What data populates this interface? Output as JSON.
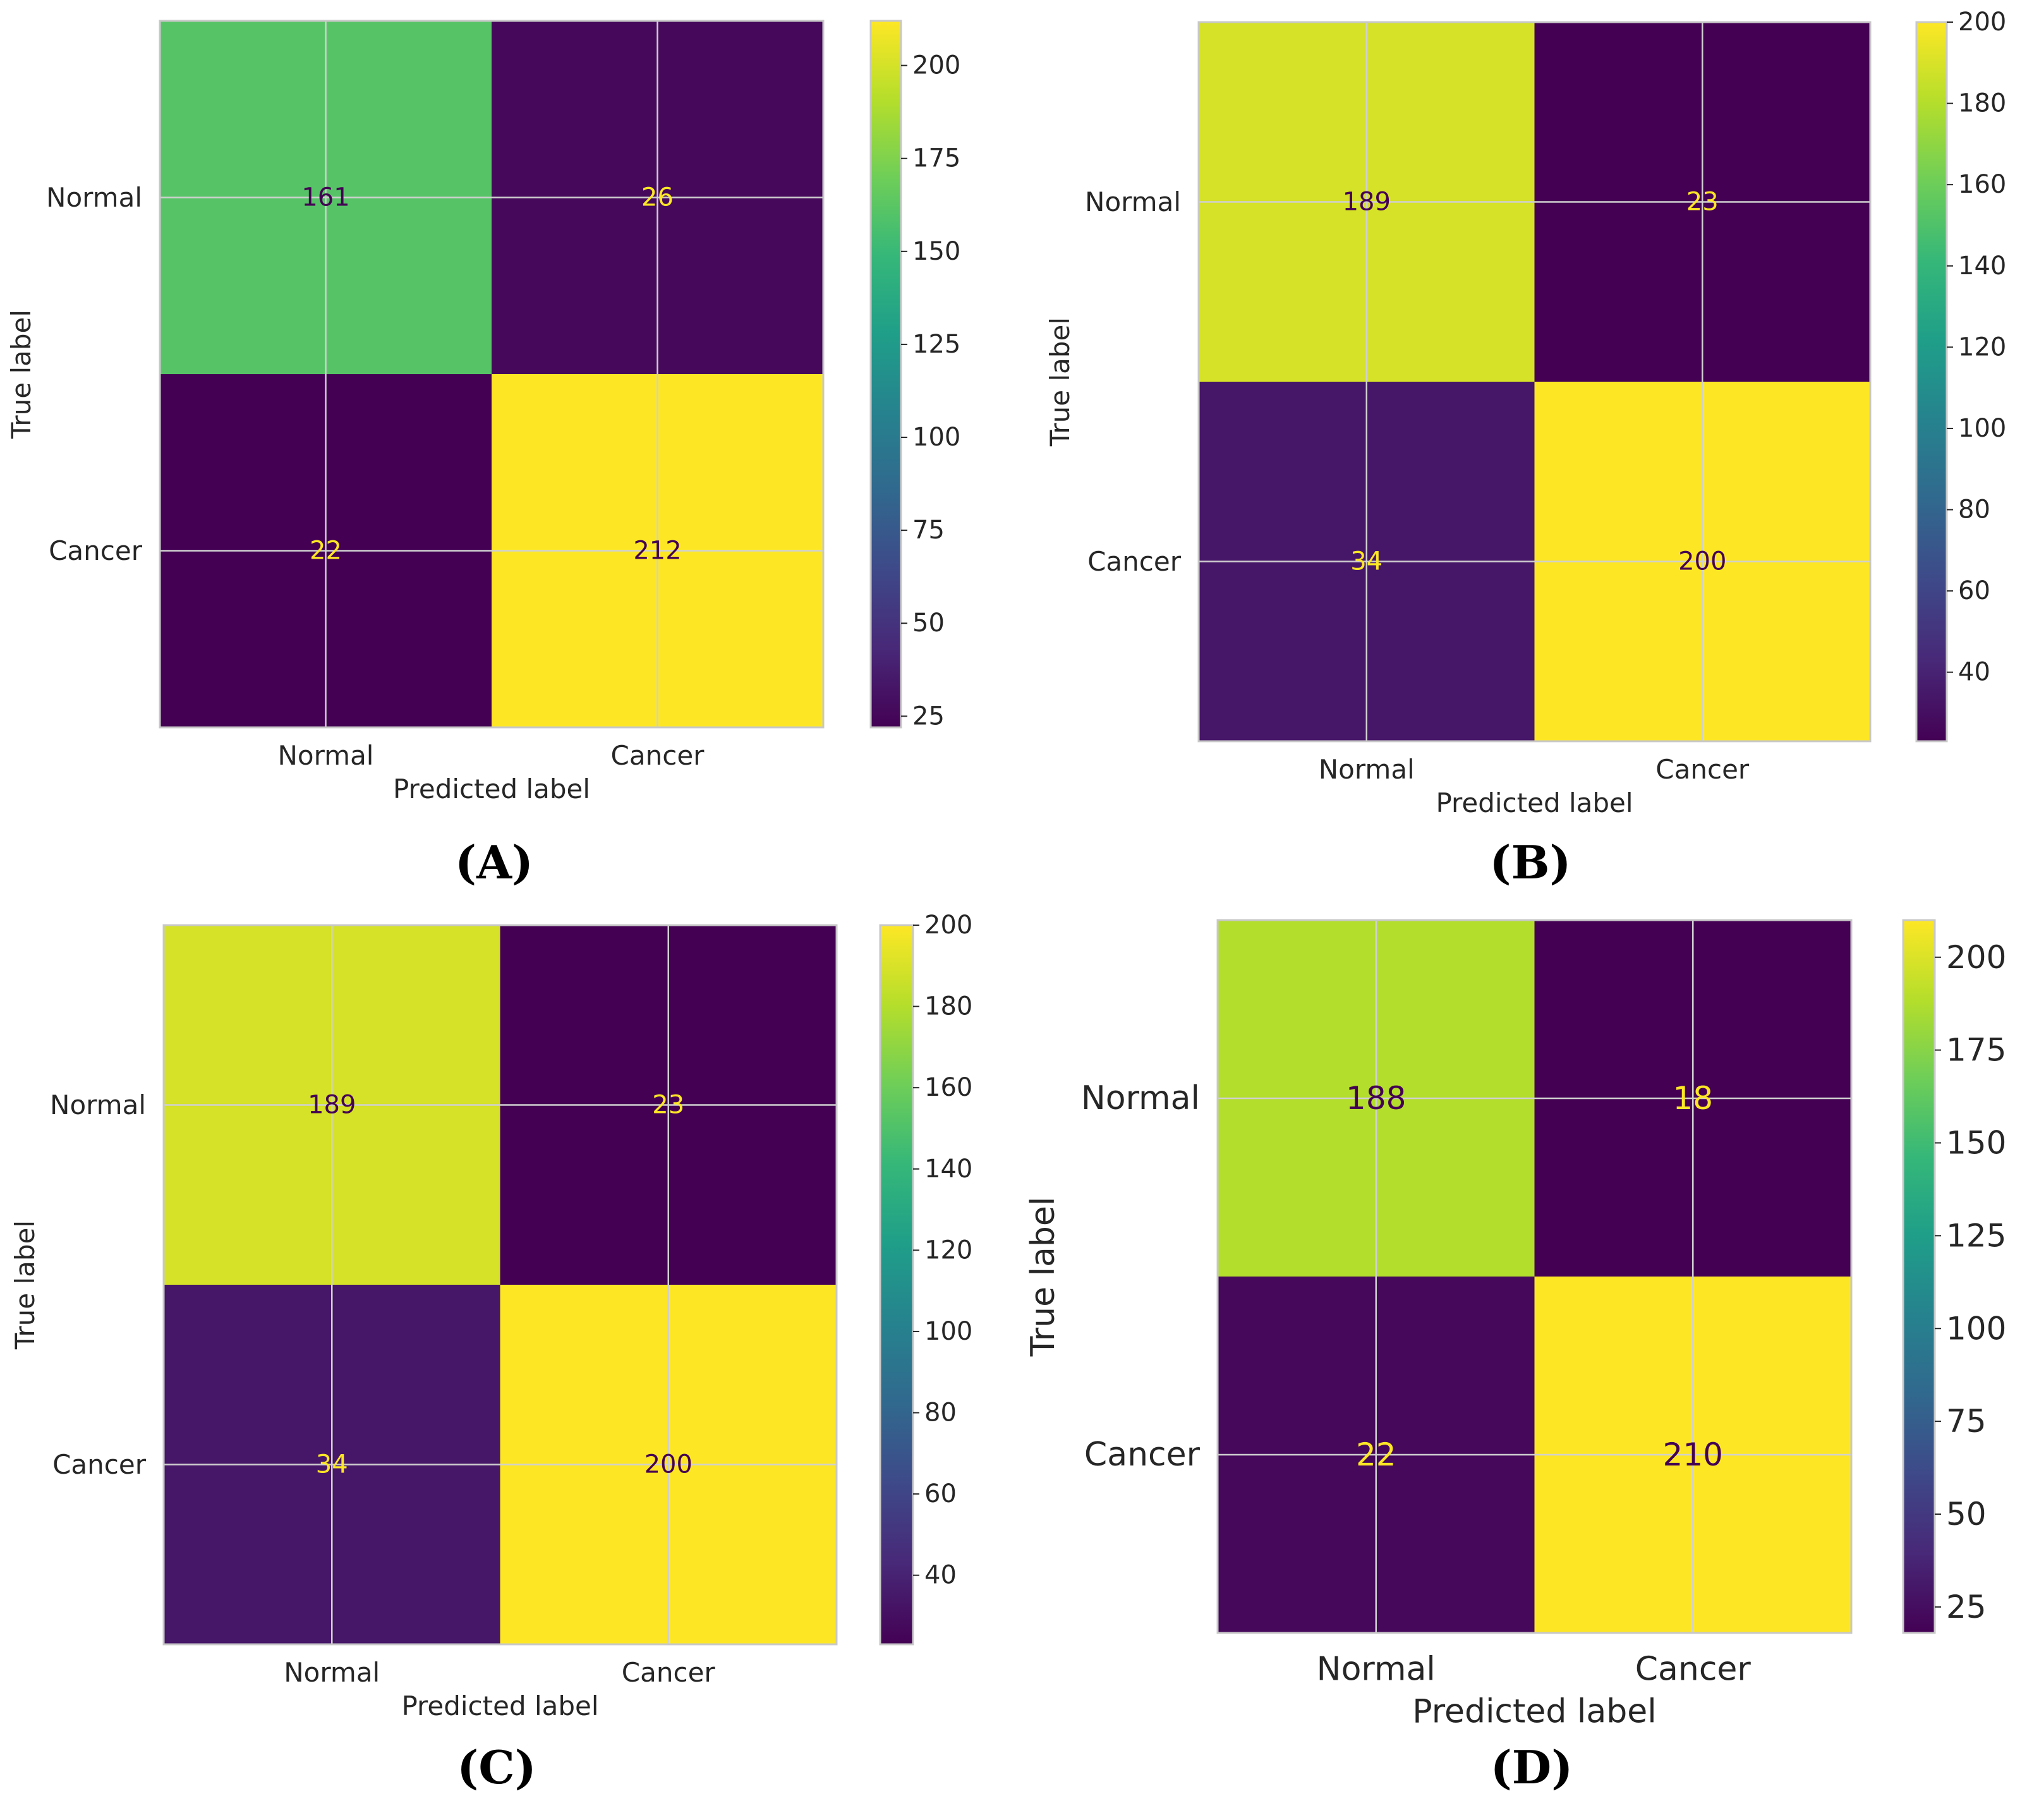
{
  "figure": {
    "colormap_stops": [
      "#440154",
      "#482878",
      "#3e4989",
      "#31688e",
      "#26828e",
      "#1f9e89",
      "#35b779",
      "#6ece58",
      "#b5de2b",
      "#fde725"
    ]
  },
  "chart_data": [
    {
      "type": "heatmap",
      "panel_label": "(A)",
      "xlabel": "Predicted label",
      "ylabel": "True label",
      "x_categories": [
        "Normal",
        "Cancer"
      ],
      "y_categories": [
        "Normal",
        "Cancer"
      ],
      "values": [
        [
          161,
          26
        ],
        [
          22,
          212
        ]
      ],
      "colorbar": {
        "vmin": 22,
        "vmax": 212,
        "ticks": [
          25,
          50,
          75,
          100,
          125,
          150,
          175,
          200
        ]
      },
      "grid": true
    },
    {
      "type": "heatmap",
      "panel_label": "(B)",
      "xlabel": "Predicted label",
      "ylabel": "True label",
      "x_categories": [
        "Normal",
        "Cancer"
      ],
      "y_categories": [
        "Normal",
        "Cancer"
      ],
      "values": [
        [
          189,
          23
        ],
        [
          34,
          200
        ]
      ],
      "colorbar": {
        "vmin": 23,
        "vmax": 200,
        "ticks": [
          40,
          60,
          80,
          100,
          120,
          140,
          160,
          180,
          200
        ]
      },
      "grid": true
    },
    {
      "type": "heatmap",
      "panel_label": "(C)",
      "xlabel": "Predicted label",
      "ylabel": "True label",
      "x_categories": [
        "Normal",
        "Cancer"
      ],
      "y_categories": [
        "Normal",
        "Cancer"
      ],
      "values": [
        [
          189,
          23
        ],
        [
          34,
          200
        ]
      ],
      "colorbar": {
        "vmin": 23,
        "vmax": 200,
        "ticks": [
          40,
          60,
          80,
          100,
          120,
          140,
          160,
          180,
          200
        ]
      },
      "grid": true
    },
    {
      "type": "heatmap",
      "panel_label": "(D)",
      "xlabel": "Predicted label",
      "ylabel": "True label",
      "x_categories": [
        "Normal",
        "Cancer"
      ],
      "y_categories": [
        "Normal",
        "Cancer"
      ],
      "values": [
        [
          188,
          18
        ],
        [
          22,
          210
        ]
      ],
      "colorbar": {
        "vmin": 18,
        "vmax": 210,
        "ticks": [
          25,
          50,
          75,
          100,
          125,
          150,
          175,
          200
        ]
      },
      "grid": true
    }
  ]
}
